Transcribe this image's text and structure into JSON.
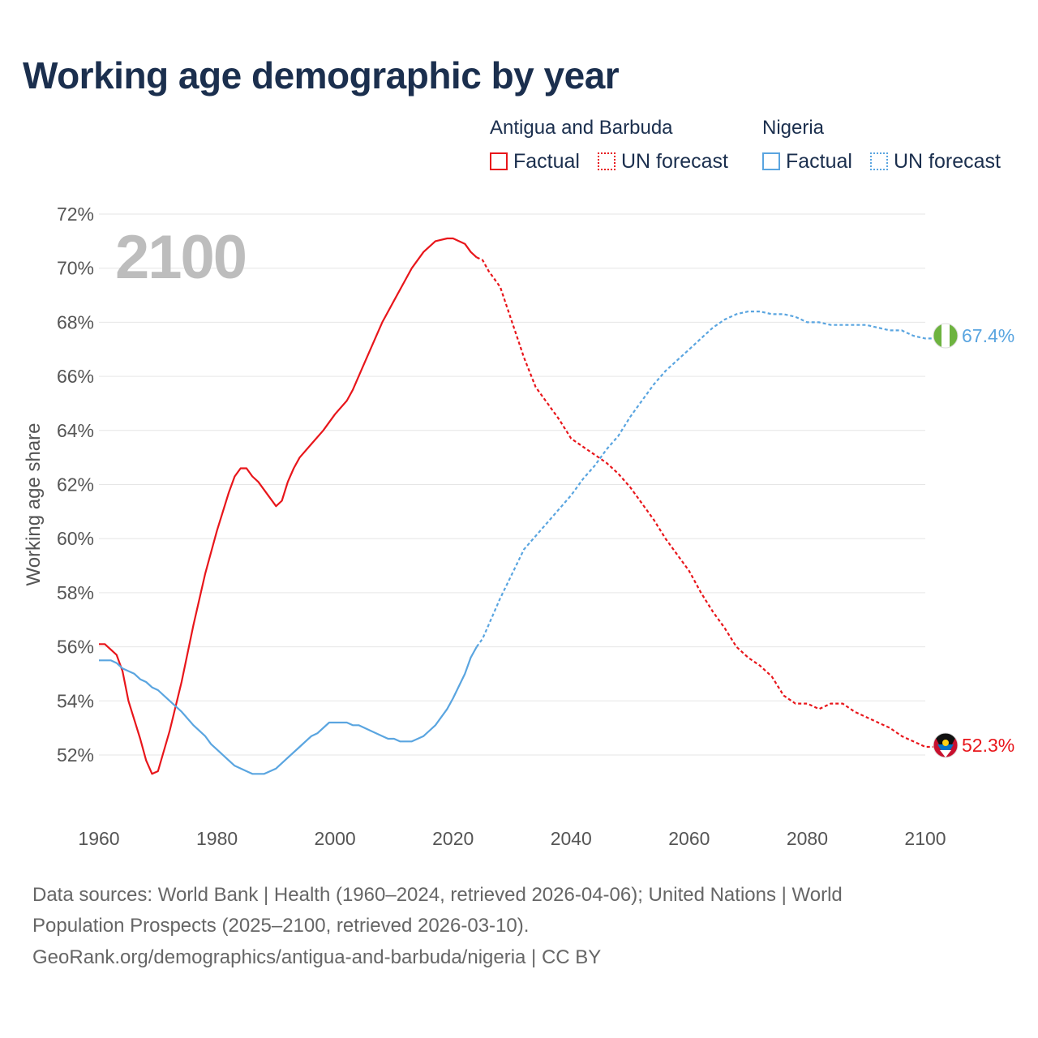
{
  "title": "Working age demographic by year",
  "legend": {
    "groups": [
      {
        "name": "Antigua and Barbuda",
        "factual": "Factual",
        "forecast": "UN forecast",
        "color": "#e8161b"
      },
      {
        "name": "Nigeria",
        "factual": "Factual",
        "forecast": "UN forecast",
        "color": "#5aa5e0"
      }
    ]
  },
  "year_overlay": "2100",
  "y_axis_label": "Working age share",
  "end_labels": {
    "nigeria": "67.4%",
    "antigua": "52.3%"
  },
  "footer": {
    "line1": "Data sources: World Bank | Health (1960–2024, retrieved 2026-04-06); United Nations | World",
    "line2": "Population Prospects (2025–2100, retrieved 2026-03-10).",
    "line3": "GeoRank.org/demographics/antigua-and-barbuda/nigeria | CC BY"
  },
  "colors": {
    "antigua": "#e8161b",
    "nigeria": "#5aa5e0",
    "title": "#1b2f4e",
    "grid": "#e6e6e6"
  },
  "chart_data": {
    "type": "line",
    "title": "Working age demographic by year",
    "xlabel": "",
    "ylabel": "Working age share",
    "xlim": [
      1960,
      2100
    ],
    "ylim": [
      50,
      72
    ],
    "x_ticks": [
      "1960",
      "1980",
      "2000",
      "2020",
      "2040",
      "2060",
      "2080",
      "2100"
    ],
    "y_ticks": [
      "52%",
      "54%",
      "56%",
      "58%",
      "60%",
      "62%",
      "64%",
      "66%",
      "68%",
      "70%",
      "72%"
    ],
    "factual_range": [
      1960,
      2024
    ],
    "forecast_range": [
      2025,
      2100
    ],
    "series": [
      {
        "name": "Antigua and Barbuda",
        "color": "#e8161b",
        "points": [
          [
            1960,
            56.1
          ],
          [
            1961,
            56.1
          ],
          [
            1963,
            55.7
          ],
          [
            1964,
            55.1
          ],
          [
            1965,
            54.0
          ],
          [
            1967,
            52.6
          ],
          [
            1968,
            51.8
          ],
          [
            1969,
            51.3
          ],
          [
            1970,
            51.4
          ],
          [
            1972,
            52.9
          ],
          [
            1974,
            54.7
          ],
          [
            1976,
            56.8
          ],
          [
            1978,
            58.7
          ],
          [
            1980,
            60.3
          ],
          [
            1982,
            61.7
          ],
          [
            1983,
            62.3
          ],
          [
            1984,
            62.6
          ],
          [
            1985,
            62.6
          ],
          [
            1986,
            62.3
          ],
          [
            1987,
            62.1
          ],
          [
            1988,
            61.8
          ],
          [
            1989,
            61.5
          ],
          [
            1990,
            61.2
          ],
          [
            1991,
            61.4
          ],
          [
            1992,
            62.1
          ],
          [
            1993,
            62.6
          ],
          [
            1994,
            63.0
          ],
          [
            1996,
            63.5
          ],
          [
            1998,
            64.0
          ],
          [
            2000,
            64.6
          ],
          [
            2002,
            65.1
          ],
          [
            2003,
            65.5
          ],
          [
            2005,
            66.5
          ],
          [
            2007,
            67.5
          ],
          [
            2008,
            68.0
          ],
          [
            2010,
            68.8
          ],
          [
            2012,
            69.6
          ],
          [
            2013,
            70.0
          ],
          [
            2015,
            70.6
          ],
          [
            2017,
            71.0
          ],
          [
            2019,
            71.1
          ],
          [
            2020,
            71.1
          ],
          [
            2022,
            70.9
          ],
          [
            2023,
            70.6
          ],
          [
            2024,
            70.4
          ],
          [
            2025,
            70.3
          ],
          [
            2026,
            69.9
          ],
          [
            2028,
            69.3
          ],
          [
            2030,
            68.0
          ],
          [
            2032,
            66.7
          ],
          [
            2034,
            65.6
          ],
          [
            2036,
            65.0
          ],
          [
            2038,
            64.4
          ],
          [
            2040,
            63.7
          ],
          [
            2042,
            63.4
          ],
          [
            2044,
            63.1
          ],
          [
            2046,
            62.8
          ],
          [
            2048,
            62.4
          ],
          [
            2050,
            61.9
          ],
          [
            2052,
            61.3
          ],
          [
            2054,
            60.7
          ],
          [
            2056,
            60.0
          ],
          [
            2058,
            59.4
          ],
          [
            2060,
            58.8
          ],
          [
            2062,
            58.0
          ],
          [
            2064,
            57.3
          ],
          [
            2066,
            56.7
          ],
          [
            2068,
            56.0
          ],
          [
            2070,
            55.6
          ],
          [
            2072,
            55.3
          ],
          [
            2074,
            54.9
          ],
          [
            2076,
            54.2
          ],
          [
            2078,
            53.9
          ],
          [
            2080,
            53.9
          ],
          [
            2082,
            53.7
          ],
          [
            2084,
            53.9
          ],
          [
            2086,
            53.9
          ],
          [
            2088,
            53.6
          ],
          [
            2090,
            53.4
          ],
          [
            2092,
            53.2
          ],
          [
            2094,
            53.0
          ],
          [
            2096,
            52.7
          ],
          [
            2098,
            52.5
          ],
          [
            2100,
            52.3
          ],
          [
            2103,
            52.3
          ]
        ]
      },
      {
        "name": "Nigeria",
        "color": "#5aa5e0",
        "points": [
          [
            1960,
            55.5
          ],
          [
            1962,
            55.5
          ],
          [
            1963,
            55.4
          ],
          [
            1964,
            55.2
          ],
          [
            1966,
            55.0
          ],
          [
            1967,
            54.8
          ],
          [
            1968,
            54.7
          ],
          [
            1969,
            54.5
          ],
          [
            1970,
            54.4
          ],
          [
            1972,
            54.0
          ],
          [
            1974,
            53.6
          ],
          [
            1976,
            53.1
          ],
          [
            1978,
            52.7
          ],
          [
            1979,
            52.4
          ],
          [
            1980,
            52.2
          ],
          [
            1982,
            51.8
          ],
          [
            1983,
            51.6
          ],
          [
            1985,
            51.4
          ],
          [
            1986,
            51.3
          ],
          [
            1988,
            51.3
          ],
          [
            1990,
            51.5
          ],
          [
            1992,
            51.9
          ],
          [
            1994,
            52.3
          ],
          [
            1996,
            52.7
          ],
          [
            1997,
            52.8
          ],
          [
            1999,
            53.2
          ],
          [
            2000,
            53.2
          ],
          [
            2002,
            53.2
          ],
          [
            2003,
            53.1
          ],
          [
            2004,
            53.1
          ],
          [
            2006,
            52.9
          ],
          [
            2008,
            52.7
          ],
          [
            2009,
            52.6
          ],
          [
            2010,
            52.6
          ],
          [
            2011,
            52.5
          ],
          [
            2013,
            52.5
          ],
          [
            2015,
            52.7
          ],
          [
            2016,
            52.9
          ],
          [
            2017,
            53.1
          ],
          [
            2019,
            53.7
          ],
          [
            2020,
            54.1
          ],
          [
            2022,
            55.0
          ],
          [
            2023,
            55.6
          ],
          [
            2024,
            56.0
          ],
          [
            2025,
            56.3
          ],
          [
            2026,
            56.8
          ],
          [
            2028,
            57.8
          ],
          [
            2030,
            58.7
          ],
          [
            2032,
            59.6
          ],
          [
            2034,
            60.1
          ],
          [
            2036,
            60.6
          ],
          [
            2038,
            61.1
          ],
          [
            2040,
            61.6
          ],
          [
            2042,
            62.2
          ],
          [
            2044,
            62.7
          ],
          [
            2046,
            63.3
          ],
          [
            2048,
            63.8
          ],
          [
            2050,
            64.5
          ],
          [
            2052,
            65.1
          ],
          [
            2054,
            65.7
          ],
          [
            2056,
            66.2
          ],
          [
            2058,
            66.6
          ],
          [
            2060,
            67.0
          ],
          [
            2062,
            67.4
          ],
          [
            2064,
            67.8
          ],
          [
            2066,
            68.1
          ],
          [
            2068,
            68.3
          ],
          [
            2070,
            68.4
          ],
          [
            2072,
            68.4
          ],
          [
            2074,
            68.3
          ],
          [
            2076,
            68.3
          ],
          [
            2078,
            68.2
          ],
          [
            2080,
            68.0
          ],
          [
            2082,
            68.0
          ],
          [
            2084,
            67.9
          ],
          [
            2086,
            67.9
          ],
          [
            2088,
            67.9
          ],
          [
            2090,
            67.9
          ],
          [
            2092,
            67.8
          ],
          [
            2094,
            67.7
          ],
          [
            2096,
            67.7
          ],
          [
            2098,
            67.5
          ],
          [
            2100,
            67.4
          ],
          [
            2103,
            67.4
          ]
        ]
      }
    ]
  }
}
